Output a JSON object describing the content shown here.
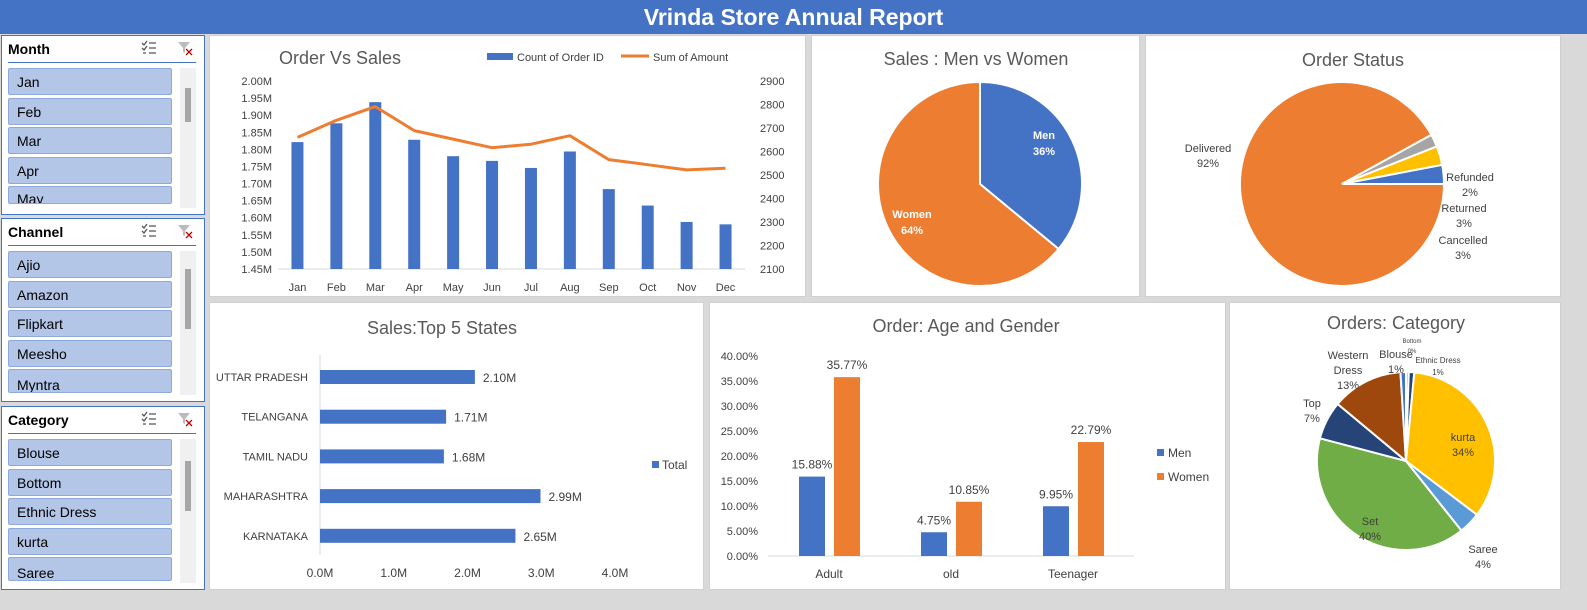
{
  "header": {
    "title": "Vrinda Store Annual Report"
  },
  "slicers": [
    {
      "title": "Month",
      "items": [
        "Jan",
        "Feb",
        "Mar",
        "Apr",
        "May"
      ]
    },
    {
      "title": "Channel",
      "items": [
        "Ajio",
        "Amazon",
        "Flipkart",
        "Meesho",
        "Myntra"
      ]
    },
    {
      "title": "Category",
      "items": [
        "Blouse",
        "Bottom",
        "Ethnic Dress",
        "kurta",
        "Saree"
      ]
    }
  ],
  "chart_data": [
    {
      "type": "bar",
      "title": "Order Vs Sales",
      "categories": [
        "Jan",
        "Feb",
        "Mar",
        "Apr",
        "May",
        "Jun",
        "Jul",
        "Aug",
        "Sep",
        "Oct",
        "Nov",
        "Dec"
      ],
      "series": [
        {
          "name": "Count of Order ID",
          "kind": "bar",
          "axis": "right",
          "values": [
            2640,
            2720,
            2810,
            2650,
            2580,
            2560,
            2530,
            2600,
            2440,
            2370,
            2300,
            2290
          ]
        },
        {
          "name": "Sum of Amount",
          "kind": "line",
          "axis": "left",
          "values": [
            1.835,
            1.885,
            1.925,
            1.855,
            1.83,
            1.805,
            1.815,
            1.84,
            1.77,
            1.755,
            1.74,
            1.745
          ]
        }
      ],
      "ylim_left": [
        1.45,
        2.0
      ],
      "ylim_right": [
        2100,
        2900
      ],
      "left_ticks": [
        "1.45M",
        "1.50M",
        "1.55M",
        "1.60M",
        "1.65M",
        "1.70M",
        "1.75M",
        "1.80M",
        "1.85M",
        "1.90M",
        "1.95M",
        "2.00M"
      ],
      "right_ticks": [
        "2100",
        "2200",
        "2300",
        "2400",
        "2500",
        "2600",
        "2700",
        "2800",
        "2900"
      ],
      "legend": "top",
      "colors": {
        "bar": "#4472c4",
        "line": "#ed7d31"
      }
    },
    {
      "type": "pie",
      "title": "Sales : Men vs Women",
      "slices": [
        {
          "label": "Men",
          "value": 36,
          "text": "36%",
          "color": "#4472c4"
        },
        {
          "label": "Women",
          "value": 64,
          "text": "64%",
          "color": "#ed7d31"
        }
      ]
    },
    {
      "type": "pie",
      "title": "Order Status",
      "slices": [
        {
          "label": "Delivered",
          "value": 92,
          "text": "92%",
          "color": "#ed7d31"
        },
        {
          "label": "Refunded",
          "value": 2,
          "text": "2%",
          "color": "#a5a5a5"
        },
        {
          "label": "Returned",
          "value": 3,
          "text": "3%",
          "color": "#ffc000"
        },
        {
          "label": "Cancelled",
          "value": 3,
          "text": "3%",
          "color": "#4472c4"
        }
      ]
    },
    {
      "type": "bar",
      "orientation": "horizontal",
      "title": "Sales:Top 5 States",
      "categories": [
        "UTTAR PRADESH",
        "TELANGANA",
        "TAMIL NADU",
        "MAHARASHTRA",
        "KARNATAKA"
      ],
      "values": [
        2.1,
        1.71,
        1.68,
        2.99,
        2.65
      ],
      "value_labels": [
        "2.10M",
        "1.71M",
        "1.68M",
        "2.99M",
        "2.65M"
      ],
      "series_name": "Total",
      "xlim": [
        0,
        4
      ],
      "x_ticks": [
        "0.0M",
        "1.0M",
        "2.0M",
        "3.0M",
        "4.0M"
      ],
      "legend": "right",
      "color": "#4472c4"
    },
    {
      "type": "bar",
      "title": "Order: Age and Gender",
      "categories": [
        "Adult",
        "old",
        "Teenager"
      ],
      "series": [
        {
          "name": "Men",
          "values": [
            15.88,
            4.75,
            9.95
          ],
          "labels": [
            "15.88%",
            "4.75%",
            "9.95%"
          ],
          "color": "#4472c4"
        },
        {
          "name": "Women",
          "values": [
            35.77,
            10.85,
            22.79
          ],
          "labels": [
            "35.77%",
            "10.85%",
            "22.79%"
          ],
          "color": "#ed7d31"
        }
      ],
      "ylim": [
        0,
        40
      ],
      "y_ticks": [
        "0.00%",
        "5.00%",
        "10.00%",
        "15.00%",
        "20.00%",
        "25.00%",
        "30.00%",
        "35.00%",
        "40.00%"
      ],
      "legend": "right"
    },
    {
      "type": "pie",
      "title": "Orders: Category",
      "slices": [
        {
          "label": "Bottom",
          "value": 0.5,
          "text": "0%",
          "color": "#a5a5a5"
        },
        {
          "label": "Ethnic Dress",
          "value": 1,
          "text": "1%",
          "color": "#264478"
        },
        {
          "label": "kurta",
          "value": 34,
          "text": "34%",
          "color": "#ffc000"
        },
        {
          "label": "Saree",
          "value": 4,
          "text": "4%",
          "color": "#5b9bd5"
        },
        {
          "label": "Set",
          "value": 40,
          "text": "40%",
          "color": "#70ad47"
        },
        {
          "label": "Top",
          "value": 7,
          "text": "7%",
          "color": "#264478"
        },
        {
          "label": "Western Dress",
          "value": 13,
          "text": "13%",
          "color": "#9e480e"
        },
        {
          "label": "Blouse",
          "value": 1,
          "text": "1%",
          "color": "#4472c4"
        }
      ]
    }
  ]
}
